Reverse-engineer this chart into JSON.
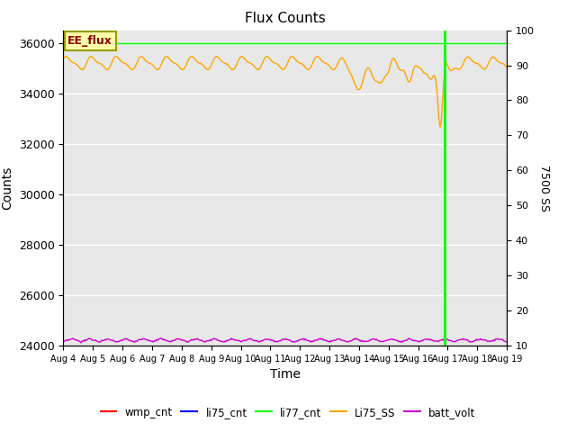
{
  "title": "Flux Counts",
  "xlabel": "Time",
  "ylabel_left": "Counts",
  "ylabel_right": "7500 SS",
  "annotation_box": "EE_flux",
  "ylim_left": [
    24000,
    36500
  ],
  "ylim_right": [
    10,
    100
  ],
  "yticks_left": [
    24000,
    26000,
    28000,
    30000,
    32000,
    34000,
    36000
  ],
  "yticks_right": [
    10,
    20,
    30,
    40,
    50,
    60,
    70,
    80,
    90,
    100
  ],
  "bg_color": "#e8e8e8",
  "fig_bg_color": "#ffffff",
  "legend_entries": [
    "wmp_cnt",
    "li75_cnt",
    "li77_cnt",
    "Li75_SS",
    "batt_volt"
  ],
  "legend_colors": [
    "red",
    "blue",
    "lime",
    "orange",
    "#cc00cc"
  ],
  "li77_line_color": "lime",
  "orange_line_color": "orange",
  "purple_line_color": "#cc00cc",
  "vertical_line_x": 12.9,
  "vertical_line_color": "#00ff00",
  "orange_base": 35200,
  "purple_base": 24150,
  "n_points": 500
}
